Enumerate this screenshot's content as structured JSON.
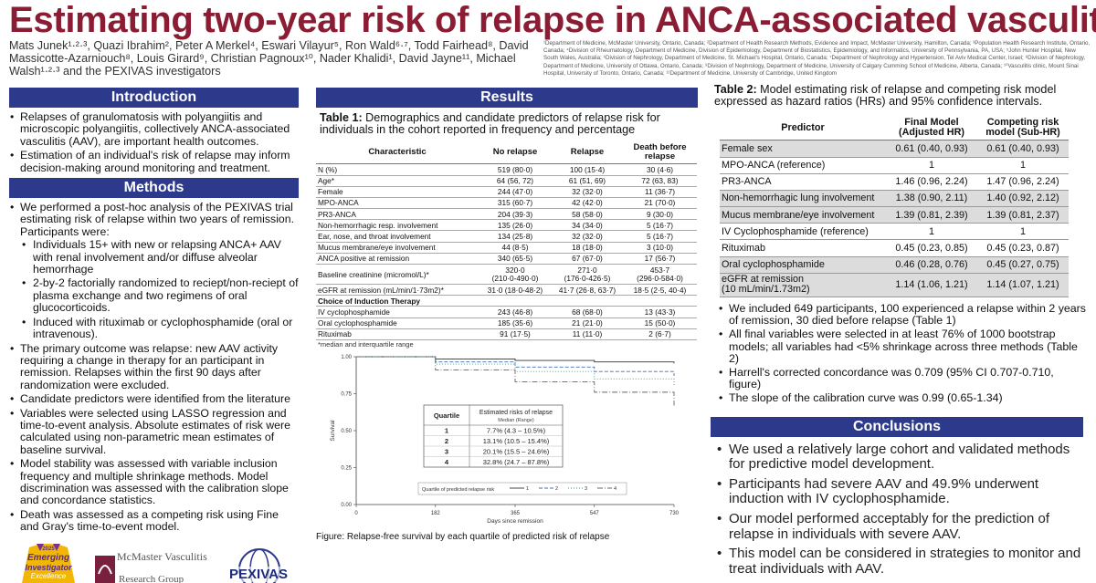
{
  "title": "Estimating two-year risk of relapse in ANCA-associated vasculitis",
  "authors": "Mats Junek¹·²·³, Quazi Ibrahim², Peter A Merkel⁴, Eswari Vilayur⁵, Ron Wald⁶·⁷, Todd Fairhead⁸, David Massicotte-Azarniouch⁸, Louis Girard⁹, Christian Pagnoux¹⁰, Nader Khalidi¹, David Jayne¹¹, Michael Walsh¹·²·³ and the PEXIVAS investigators",
  "affiliations": "¹Department of Medicine, McMaster University, Ontario, Canada; ²Department of Health Research Methods, Evidence and Impact, McMaster University, Hamilton, Canada; ³Population Health Research Institute, Ontario, Canada; ⁴Division of Rheumatology, Department of Medicine, Division of Epidemiology, Department of Biostatistics, Epidemiology, and Informatics, University of Pennsylvania, PA, USA; ⁵John Hunter Hospital, New South Wales, Australia; ⁶Division of Nephrology, Department of Medicine, St. Michael's Hospital, Ontario, Canada; ⁷Department of Nephrology and Hypertension, Tel Aviv Medical Center, Israel; ⁸Division of Nephrology, Department of Medicine, University of Ottawa, Ontario, Canada; ⁹Division of Nephrology, Department of Medicine, University of Calgary Cumming School of Medicine, Alberta, Canada; ¹⁰Vasculitis clinic, Mount Sinai Hospital, University of Toronto, Ontario, Canada; ¹¹Department of Medicine, University of Cambridge, United Kingdom",
  "intro": {
    "header": "Introduction",
    "bullets": [
      "Relapses of granulomatosis with polyangiitis and microscopic polyangiitis, collectively ANCA-associated vasculitis (AAV), are important health outcomes.",
      "Estimation of an individual's risk of relapse may inform decision-making around monitoring and treatment."
    ]
  },
  "methods": {
    "header": "Methods",
    "b1": "We performed a post-hoc analysis of the PEXIVAS trial estimating risk of relapse within two years of remission. Participants were:",
    "sub": [
      "Individuals 15+ with new or relapsing ANCA+ AAV with renal involvement and/or diffuse alveolar hemorrhage",
      "2-by-2 factorially randomized to reciept/non-reciept of plasma exchange and two regimens of oral glucocorticoids.",
      "Induced with rituximab or cyclophosphamide (oral or intravenous)."
    ],
    "rest": [
      "The primary outcome was relapse: new AAV activity requiring a change in therapy for an participant in remission. Relapses within the first 90 days after randomization were excluded.",
      "Candidate predictors were identified from the literature",
      "Variables were selected using LASSO regression and time-to-event analysis. Absolute estimates of risk were calculated using non-parametric mean estimates of baseline survival.",
      "Model stability was assessed with variable inclusion frequency and multiple shrinkage methods. Model discrimination was assessed with the calibration slope and concordance statistics.",
      "Death was assessed as a competing risk using Fine and Gray's time-to-event model."
    ]
  },
  "logos": {
    "award_year": "2025",
    "award_l1": "Emerging",
    "award_l2": "Investigator",
    "award_l3": "Excellence",
    "mcmaster_l1": "McMaster Vasculitis",
    "mcmaster_l2": "Research Group",
    "pexivas": "PEXIVAS"
  },
  "results": {
    "header": "Results",
    "t1_caption_bold": "Table 1:",
    "t1_caption": " Demographics and candidate predictors of relapse risk for individuals in the cohort reported in frequency and percentage",
    "t1_headers": [
      "Characteristic",
      "No relapse",
      "Relapse",
      "Death before relapse"
    ],
    "t1_rows": [
      [
        "N (%)",
        "519 (80·0)",
        "100 (15·4)",
        "30 (4·6)"
      ],
      [
        "Age*",
        "64 (56, 72)",
        "61 (51, 69)",
        "72 (63, 83)"
      ],
      [
        "Female",
        "244 (47·0)",
        "32 (32·0)",
        "11 (36·7)"
      ],
      [
        "MPO-ANCA",
        "315 (60·7)",
        "42 (42·0)",
        "21 (70·0)"
      ],
      [
        "PR3-ANCA",
        "204 (39·3)",
        "58 (58·0)",
        "9 (30·0)"
      ],
      [
        "Non-hemorrhagic resp. involvement",
        "135 (26·0)",
        "34 (34·0)",
        "5 (16·7)"
      ],
      [
        "Ear, nose, and throat involvement",
        "134 (25·8)",
        "32 (32·0)",
        "5 (16·7)"
      ],
      [
        "Mucus membrane/eye involvement",
        "44 (8·5)",
        "18 (18·0)",
        "3 (10·0)"
      ],
      [
        "ANCA positive at remission",
        "340 (65·5)",
        "67 (67·0)",
        "17 (56·7)"
      ]
    ],
    "t1_creat": {
      "label": "Baseline creatinine (micromol/L)*",
      "v1a": "320·0",
      "v1b": "(210·0-490·0)",
      "v2a": "271·0",
      "v2b": "(176·0-426·5)",
      "v3a": "453·7",
      "v3b": "(296·0-584·0)"
    },
    "t1_egfr": [
      "eGFR at remission (mL/min/1·73m2)*",
      "31·0 (18·0-48·2)",
      "41·7 (26·8, 63·7)",
      "18·5 (2·5, 40·4)"
    ],
    "t1_section": "Choice of Induction Therapy",
    "t1_rows2": [
      [
        "IV cyclophosphamide",
        "243 (46·8)",
        "68 (68·0)",
        "13 (43·3)"
      ],
      [
        "Oral cyclophosphamide",
        "185 (35·6)",
        "21 (21·0)",
        "15 (50·0)"
      ],
      [
        "Rituximab",
        "91 (17·5)",
        "11 (11·0)",
        "2 (6·7)"
      ]
    ],
    "t1_footnote": "*median and interquartile range",
    "figure_caption": "Figure: Relapse-free survival by each quartile of predicted risk of relapse"
  },
  "chart_data": {
    "type": "line",
    "title": "",
    "xlabel": "Days since remission",
    "ylabel": "Survival",
    "x_ticks": [
      "0",
      "182",
      "365",
      "547",
      "730"
    ],
    "y_ticks": [
      "0.00",
      "0.25",
      "0.50",
      "0.75",
      "1.00"
    ],
    "xlim": [
      0,
      730
    ],
    "ylim": [
      0,
      1
    ],
    "legend_title": "Quartile of predicted relapse risk",
    "series": [
      {
        "name": "1",
        "x": [
          0,
          182,
          365,
          547,
          730
        ],
        "y": [
          1.0,
          0.985,
          0.975,
          0.965,
          0.955
        ]
      },
      {
        "name": "2",
        "x": [
          0,
          182,
          365,
          547,
          730
        ],
        "y": [
          1.0,
          0.965,
          0.93,
          0.9,
          0.87
        ]
      },
      {
        "name": "3",
        "x": [
          0,
          182,
          365,
          547,
          730
        ],
        "y": [
          1.0,
          0.95,
          0.9,
          0.85,
          0.8
        ]
      },
      {
        "name": "4",
        "x": [
          0,
          182,
          365,
          547,
          730
        ],
        "y": [
          1.0,
          0.91,
          0.83,
          0.76,
          0.67
        ]
      }
    ],
    "inset_table": {
      "headers": [
        "Quartile",
        "Estimated risks of relapse"
      ],
      "subheader": "Median (Range)",
      "rows": [
        [
          "1",
          "7.7% (4.3 – 10.5%)"
        ],
        [
          "2",
          "13.1% (10.5 – 15.4%)"
        ],
        [
          "3",
          "20.1% (15.5 – 24.6%)"
        ],
        [
          "4",
          "32.8% (24.7 – 87.8%)"
        ]
      ]
    }
  },
  "t2": {
    "caption_bold": "Table 2:",
    "caption": " Model estimating risk of relapse and competing risk model expressed as hazard ratios (HRs) and 95% confidence intervals.",
    "headers": [
      "Predictor",
      "Final Model (Adjusted HR)",
      "Competing risk model (Sub-HR)"
    ],
    "rows": [
      [
        "Female sex",
        "0.61 (0.40, 0.93)",
        "0.61 (0.40, 0.93)"
      ],
      [
        "MPO-ANCA (reference)",
        "1",
        "1"
      ],
      [
        "PR3-ANCA",
        "1.46 (0.96, 2.24)",
        "1.47 (0.96, 2.24)"
      ],
      [
        "Non-hemorrhagic lung involvement",
        "1.38 (0.90, 2.11)",
        "1.40 (0.92, 2.12)"
      ],
      [
        "Mucus membrane/eye involvement",
        "1.39 (0.81, 2.39)",
        "1.39 (0.81, 2.37)"
      ],
      [
        "IV Cyclophosphamide (reference)",
        "1",
        "1"
      ],
      [
        "Rituximab",
        "0.45 (0.23, 0.85)",
        "0.45 (0.23, 0.87)"
      ],
      [
        "Oral cyclophosphamide",
        "0.46 (0.28, 0.76)",
        "0.45 (0.27, 0.75)"
      ]
    ],
    "egfr_l1": "eGFR at remission",
    "egfr_l2": "(10 mL/min/1.73m2)",
    "egfr_v1": "1.14 (1.06, 1.21)",
    "egfr_v2": "1.14 (1.07, 1.21)"
  },
  "findings": [
    "We included 649 participants, 100 experienced a relapse within 2 years of remission, 30 died before relapse (Table 1)",
    "All final variables were selected in at least 76% of 1000 bootstrap models; all variables had <5% shrinkage across three methods (Table 2)",
    "Harrell's corrected concordance was 0.709 (95% CI 0.707-0.710, figure)",
    "The slope of the calibration curve was 0.99 (0.65-1.34)"
  ],
  "conclusions": {
    "header": "Conclusions",
    "bullets": [
      "We used a relatively large cohort and validated methods for predictive model development.",
      "Participants had severe AAV and 49.9% underwent induction with IV cyclophosphamide.",
      "Our model performed acceptably for the prediction of relapse in individuals with severe AAV.",
      "This model can be considered in strategies to monitor and treat individuals with AAV."
    ]
  },
  "colors": {
    "header": "#2d3a8c",
    "title": "#8a1c33"
  }
}
